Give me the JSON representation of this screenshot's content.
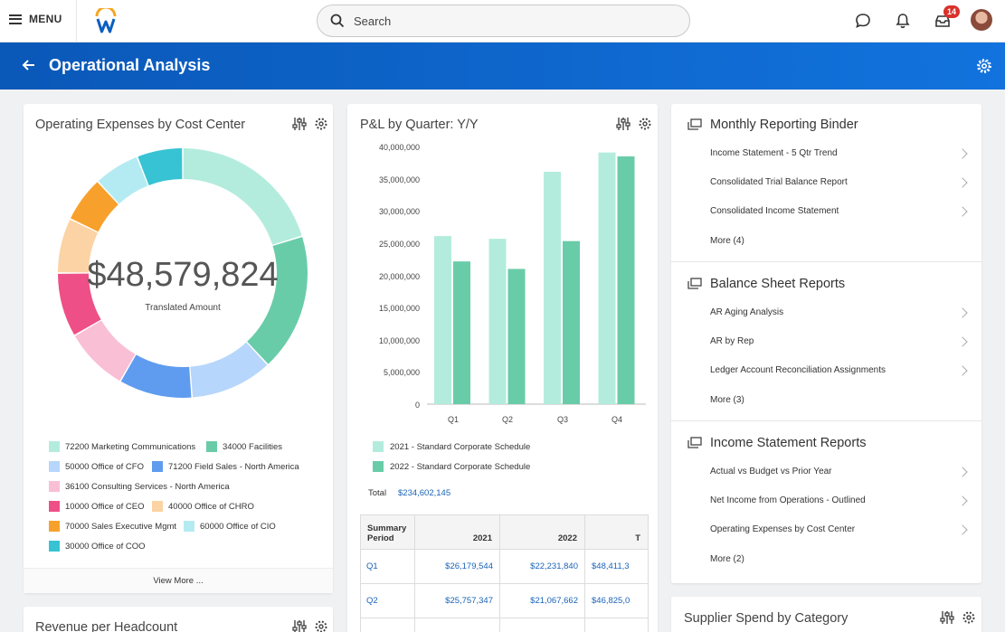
{
  "header": {
    "menu_label": "MENU",
    "search_placeholder": "Search",
    "inbox_badge": "14"
  },
  "page": {
    "title": "Operational Analysis"
  },
  "expenses_card": {
    "title": "Operating Expenses by Cost Center",
    "total_value": "$48,579,824",
    "total_label": "Translated Amount",
    "view_more": "View More ...",
    "legend": [
      {
        "label": "72200 Marketing Communications",
        "color": "#b3ecdc"
      },
      {
        "label": "34000 Facilities",
        "color": "#69cca9"
      },
      {
        "label": "50000 Office of CFO",
        "color": "#b6d6fb"
      },
      {
        "label": "71200 Field Sales - North America",
        "color": "#5f9cef"
      },
      {
        "label": "36100 Consulting Services - North America",
        "color": "#f9bfd5"
      },
      {
        "label": "10000 Office of CEO",
        "color": "#ee4f86"
      },
      {
        "label": "40000 Office of CHRO",
        "color": "#fbd3a4"
      },
      {
        "label": "70000 Sales Executive Mgmt",
        "color": "#f7a12c"
      },
      {
        "label": "60000 Office of CIO",
        "color": "#b4ebf2"
      },
      {
        "label": "30000 Office of COO",
        "color": "#37c3d3"
      }
    ]
  },
  "revenue_card": {
    "title": "Revenue per Headcount"
  },
  "pl_card": {
    "title": "P&L by Quarter: Y/Y",
    "total_label": "Total",
    "total_value": "$234,602,145",
    "table": {
      "headers": [
        "Summary Period",
        "2021",
        "2022",
        "T"
      ],
      "rows": [
        [
          "Q1",
          "$26,179,544",
          "$22,231,840",
          "$48,411,3"
        ],
        [
          "Q2",
          "$25,757,347",
          "$21,067,662",
          "$46,825,0"
        ]
      ]
    }
  },
  "chart_data": [
    {
      "type": "pie",
      "title": "Operating Expenses by Cost Center",
      "labels": [
        "72200 Marketing Communications",
        "34000 Facilities",
        "50000 Office of CFO",
        "71200 Field Sales - North America",
        "36100 Consulting Services - North America",
        "10000 Office of CEO",
        "40000 Office of CHRO",
        "70000 Sales Executive Mgmt",
        "60000 Office of CIO",
        "30000 Office of COO"
      ],
      "values": [
        17,
        15,
        9,
        8,
        7,
        7,
        6,
        5,
        5,
        5
      ],
      "colors": [
        "#b3ecdc",
        "#69cca9",
        "#b6d6fb",
        "#5f9cef",
        "#f9bfd5",
        "#ee4f86",
        "#fbd3a4",
        "#f7a12c",
        "#b4ebf2",
        "#37c3d3"
      ]
    },
    {
      "type": "bar",
      "title": "P&L by Quarter: Y/Y",
      "categories": [
        "Q1",
        "Q2",
        "Q3",
        "Q4"
      ],
      "series": [
        {
          "name": "2021 - Standard Corporate Schedule",
          "values": [
            26179544,
            25757347,
            36200000,
            39200000
          ],
          "color": "#b3ecdc"
        },
        {
          "name": "2022 - Standard Corporate Schedule",
          "values": [
            22231840,
            21067662,
            25400000,
            38600000
          ],
          "color": "#69cca9"
        }
      ],
      "yticks": [
        "0",
        "5,000,000",
        "10,000,000",
        "15,000,000",
        "20,000,000",
        "25,000,000",
        "30,000,000",
        "35,000,000",
        "40,000,000"
      ],
      "ylim": [
        0,
        40000000
      ]
    }
  ],
  "binder": {
    "sections": [
      {
        "title": "Monthly Reporting Binder",
        "items": [
          "Income Statement - 5 Qtr Trend",
          "Consolidated Trial Balance Report",
          "Consolidated Income Statement"
        ],
        "more": "More (4)"
      },
      {
        "title": "Balance Sheet Reports",
        "items": [
          "AR Aging Analysis",
          "AR by Rep",
          "Ledger Account Reconciliation Assignments"
        ],
        "more": "More (3)"
      },
      {
        "title": "Income Statement Reports",
        "items": [
          "Actual vs Budget vs Prior Year",
          "Net Income from Operations - Outlined",
          "Operating Expenses by Cost Center"
        ],
        "more": "More (2)"
      }
    ]
  },
  "supplier_card": {
    "title": "Supplier Spend by Category"
  }
}
